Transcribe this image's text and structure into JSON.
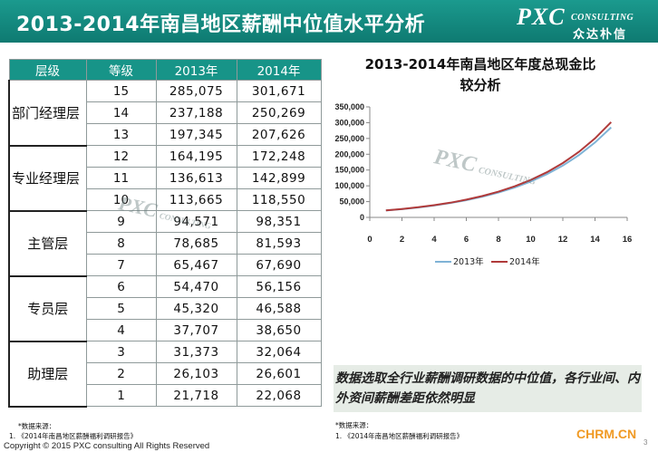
{
  "header": {
    "title": "2013-2014年南昌地区薪酬中位值水平分析"
  },
  "logo": {
    "main": "PXC",
    "sub": "CONSULTING",
    "cn": "众达朴信"
  },
  "table": {
    "headers": [
      "层级",
      "等级",
      "2013年",
      "2014年"
    ],
    "groups": [
      {
        "level": "部门经理层",
        "rows": [
          {
            "grade": "15",
            "y2013": "285,075",
            "y2014": "301,671"
          },
          {
            "grade": "14",
            "y2013": "237,188",
            "y2014": "250,269"
          },
          {
            "grade": "13",
            "y2013": "197,345",
            "y2014": "207,626"
          }
        ]
      },
      {
        "level": "专业经理层",
        "rows": [
          {
            "grade": "12",
            "y2013": "164,195",
            "y2014": "172,248"
          },
          {
            "grade": "11",
            "y2013": "136,613",
            "y2014": "142,899"
          },
          {
            "grade": "10",
            "y2013": "113,665",
            "y2014": "118,550"
          }
        ]
      },
      {
        "level": "主管层",
        "rows": [
          {
            "grade": "9",
            "y2013": "94,571",
            "y2014": "98,351"
          },
          {
            "grade": "8",
            "y2013": "78,685",
            "y2014": "81,593"
          },
          {
            "grade": "7",
            "y2013": "65,467",
            "y2014": "67,690"
          }
        ]
      },
      {
        "level": "专员层",
        "rows": [
          {
            "grade": "6",
            "y2013": "54,470",
            "y2014": "56,156"
          },
          {
            "grade": "5",
            "y2013": "45,320",
            "y2014": "46,588"
          },
          {
            "grade": "4",
            "y2013": "37,707",
            "y2014": "38,650"
          }
        ]
      },
      {
        "level": "助理层",
        "rows": [
          {
            "grade": "3",
            "y2013": "31,373",
            "y2014": "32,064"
          },
          {
            "grade": "2",
            "y2013": "26,103",
            "y2014": "26,601"
          },
          {
            "grade": "1",
            "y2013": "21,718",
            "y2014": "22,068"
          }
        ]
      }
    ]
  },
  "chart_data": {
    "type": "line",
    "title": "2013-2014年南昌地区年度总现金比较分析",
    "title_lines": [
      "2013-2014年南昌地区年度总现金比",
      "较分析"
    ],
    "x": [
      1,
      2,
      3,
      4,
      5,
      6,
      7,
      8,
      9,
      10,
      11,
      12,
      13,
      14,
      15
    ],
    "xlim": [
      0,
      16
    ],
    "xticks": [
      "0",
      "2",
      "4",
      "6",
      "8",
      "10",
      "12",
      "14",
      "16"
    ],
    "ylim": [
      0,
      350000
    ],
    "yticks": [
      "0",
      "50,000",
      "100,000",
      "150,000",
      "200,000",
      "250,000",
      "300,000",
      "350,000"
    ],
    "series": [
      {
        "name": "2013年",
        "color": "#7fb3d6",
        "values": [
          21718,
          26103,
          31373,
          37707,
          45320,
          54470,
          65467,
          78685,
          94571,
          113665,
          136613,
          164195,
          197345,
          237188,
          285075
        ]
      },
      {
        "name": "2014年",
        "color": "#b03a3a",
        "values": [
          22068,
          26601,
          32064,
          38650,
          46588,
          56156,
          67690,
          81593,
          98351,
          118550,
          142899,
          172248,
          207626,
          250269,
          301671
        ]
      }
    ],
    "legend_position": "bottom",
    "grid": false
  },
  "note": {
    "text": "数据选取全行业薪酬调研数据的中位值，各行业间、内外资间薪酬差距依然明显"
  },
  "source_left": {
    "label": "*数据来源：",
    "item": "1.    《2014年南昌地区薪酬福利调研报告》"
  },
  "source_right": {
    "label": "*数据来源：",
    "item": "1.    《2014年南昌地区薪酬福利调研报告》"
  },
  "copyright": "Copyright © 2015 PXC consulting All Rights Reserved",
  "site": "CHRM.CN",
  "page_number": "3",
  "watermark": {
    "main": "PXC",
    "sub": "CONSULTING",
    "cn": "众达朴信"
  }
}
